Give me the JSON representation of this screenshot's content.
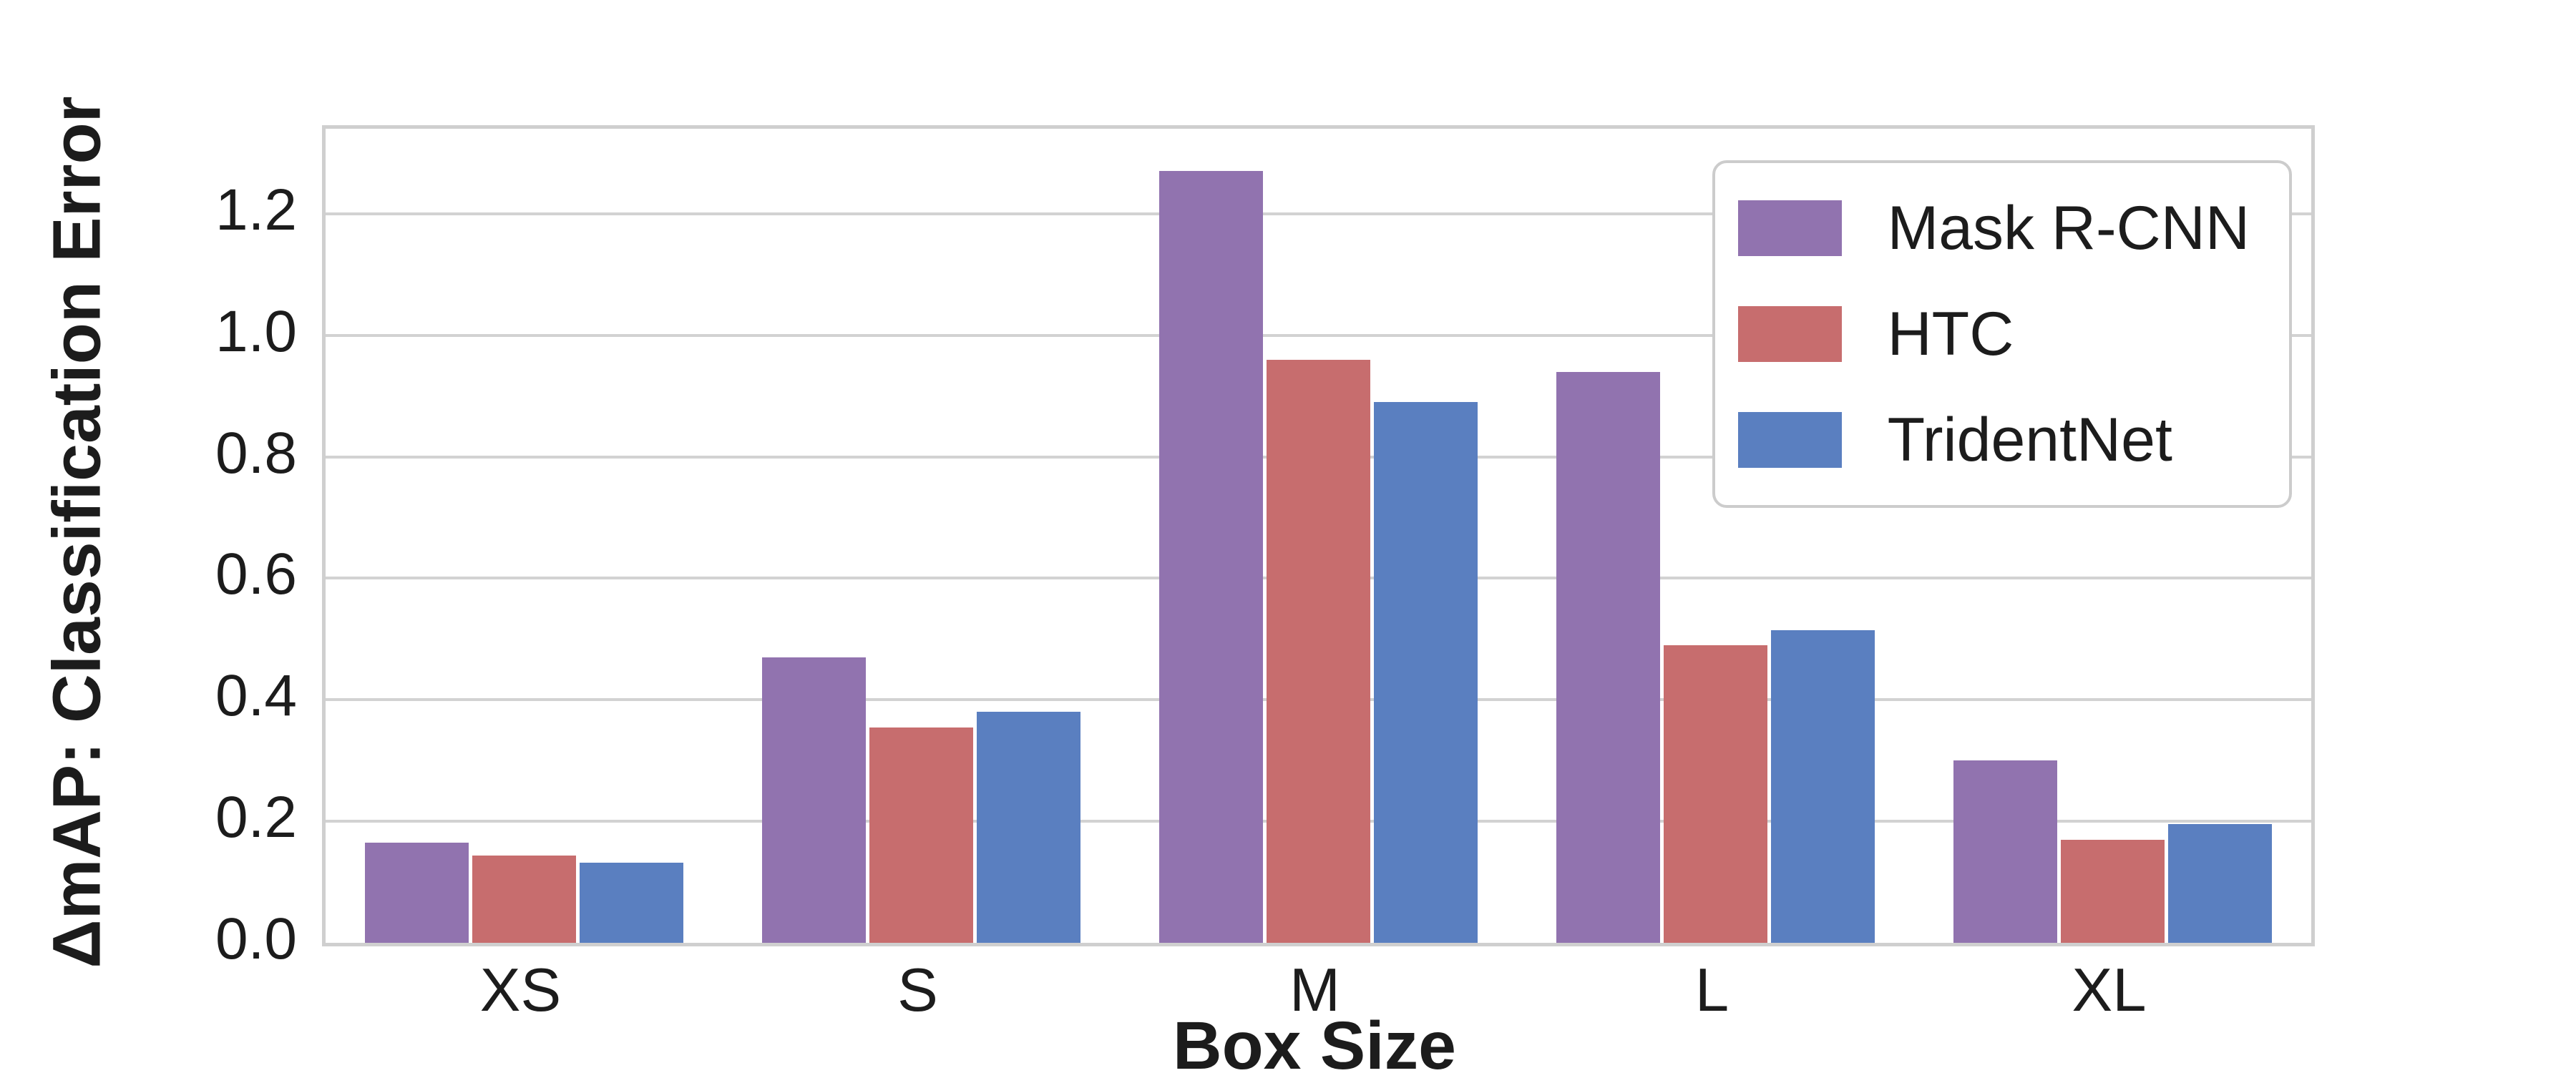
{
  "chart_data": {
    "type": "bar",
    "categories": [
      "XS",
      "S",
      "M",
      "L",
      "XL"
    ],
    "series": [
      {
        "name": "Mask R-CNN",
        "color": "#9173AF",
        "values": [
          0.165,
          0.47,
          1.27,
          0.94,
          0.3
        ]
      },
      {
        "name": "HTC",
        "color": "#C76D6E",
        "values": [
          0.144,
          0.355,
          0.96,
          0.49,
          0.17
        ]
      },
      {
        "name": "TridentNet",
        "color": "#5A7FC0",
        "values": [
          0.132,
          0.38,
          0.89,
          0.515,
          0.195
        ]
      }
    ],
    "xlabel": "Box Size",
    "ylabel": "ΔmAP: Classification Error",
    "yticks": [
      "0.0",
      "0.2",
      "0.4",
      "0.6",
      "0.8",
      "1.0",
      "1.2"
    ],
    "ylim": [
      0,
      1.34
    ],
    "grid": "horizontal",
    "grid_color": "#d2d2d2",
    "legend_position": "upper right"
  }
}
